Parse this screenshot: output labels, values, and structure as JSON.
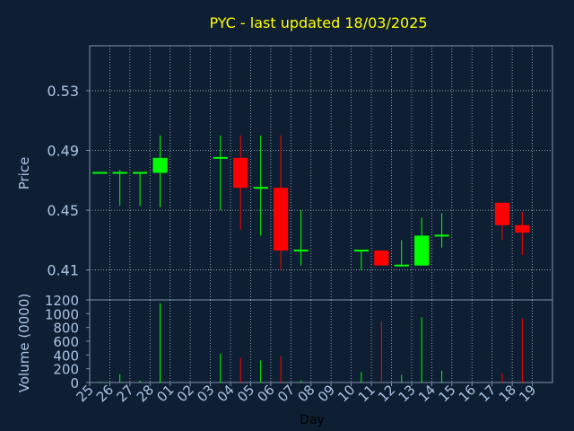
{
  "chart_data": {
    "type": "candlestick",
    "title": "PYC - last updated 18/03/2025",
    "price_axis": {
      "label": "Price",
      "ylim": [
        0.39,
        0.56
      ],
      "ticks": [
        0.41,
        0.45,
        0.49,
        0.53
      ],
      "tick_labels": [
        "0.41",
        "0.45",
        "0.49",
        "0.53"
      ]
    },
    "volume_axis": {
      "label": "Volume (0000)",
      "ylim": [
        0,
        1200
      ],
      "ticks": [
        0,
        200,
        400,
        600,
        800,
        1000,
        1200
      ],
      "tick_labels": [
        "0",
        "200",
        "400",
        "600",
        "800",
        "1000",
        "1200"
      ]
    },
    "xlabel": "Day",
    "days": [
      "25",
      "26",
      "27",
      "28",
      "01",
      "02",
      "03",
      "04",
      "05",
      "06",
      "07",
      "08",
      "09",
      "10",
      "11",
      "12",
      "13",
      "14",
      "15",
      "16",
      "17",
      "18",
      "19"
    ],
    "candles": [
      {
        "day": "25",
        "open": 0.475,
        "high": 0.475,
        "low": 0.475,
        "close": 0.475,
        "volume": 10
      },
      {
        "day": "26",
        "open": 0.475,
        "high": 0.477,
        "low": 0.453,
        "close": 0.475,
        "volume": 120
      },
      {
        "day": "27",
        "open": 0.475,
        "high": 0.475,
        "low": 0.453,
        "close": 0.475,
        "volume": 30
      },
      {
        "day": "28",
        "open": 0.475,
        "high": 0.5,
        "low": 0.452,
        "close": 0.485,
        "volume": 1150
      },
      {
        "day": "03",
        "open": 0.485,
        "high": 0.5,
        "low": 0.45,
        "close": 0.485,
        "volume": 420
      },
      {
        "day": "04",
        "open": 0.485,
        "high": 0.5,
        "low": 0.437,
        "close": 0.465,
        "volume": 360
      },
      {
        "day": "05",
        "open": 0.465,
        "high": 0.5,
        "low": 0.433,
        "close": 0.465,
        "volume": 320
      },
      {
        "day": "06",
        "open": 0.465,
        "high": 0.5,
        "low": 0.41,
        "close": 0.423,
        "volume": 380
      },
      {
        "day": "07",
        "open": 0.423,
        "high": 0.45,
        "low": 0.413,
        "close": 0.423,
        "volume": 30
      },
      {
        "day": "10",
        "open": 0.423,
        "high": 0.423,
        "low": 0.41,
        "close": 0.423,
        "volume": 150
      },
      {
        "day": "11",
        "open": 0.423,
        "high": 0.423,
        "low": 0.413,
        "close": 0.413,
        "volume": 890
      },
      {
        "day": "12",
        "open": 0.413,
        "high": 0.43,
        "low": 0.413,
        "close": 0.413,
        "volume": 110
      },
      {
        "day": "13",
        "open": 0.413,
        "high": 0.445,
        "low": 0.413,
        "close": 0.433,
        "volume": 950
      },
      {
        "day": "14",
        "open": 0.433,
        "high": 0.448,
        "low": 0.425,
        "close": 0.433,
        "volume": 170
      },
      {
        "day": "17",
        "open": 0.455,
        "high": 0.455,
        "low": 0.43,
        "close": 0.44,
        "volume": 130
      },
      {
        "day": "18",
        "open": 0.44,
        "high": 0.449,
        "low": 0.42,
        "close": 0.435,
        "volume": 930
      }
    ],
    "colors": {
      "background": "#0f1f33",
      "up": "#00ff00",
      "down": "#ff0000",
      "title": "#ffff00",
      "axis_text": "#aac4e3",
      "grid": "#aabbcc"
    },
    "grid": true
  }
}
